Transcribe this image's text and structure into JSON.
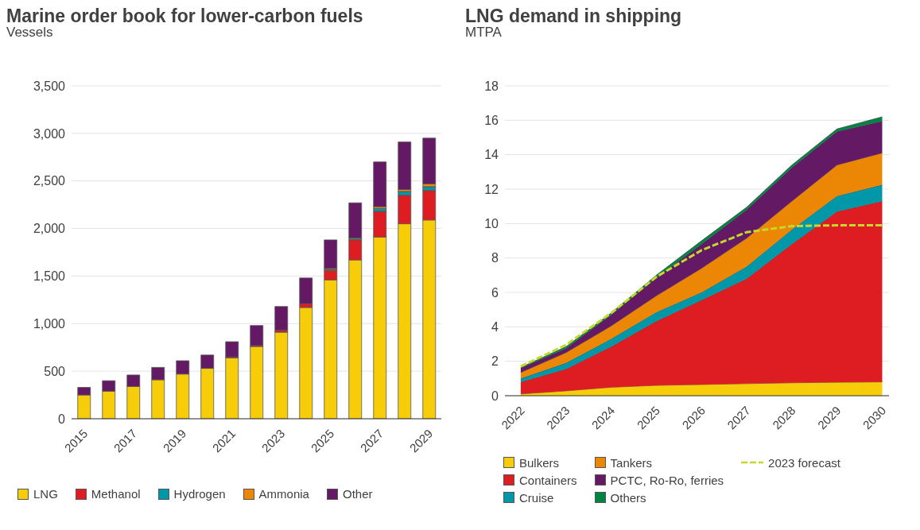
{
  "chart_data": [
    {
      "type": "bar",
      "title": "Marine order book for lower-carbon fuels",
      "subtitle": "Vessels",
      "stacked": true,
      "categories": [
        "2015",
        null,
        "2017",
        null,
        "2019",
        null,
        "2021",
        null,
        "2023",
        null,
        "2025",
        null,
        "2027",
        null,
        "2029"
      ],
      "series": [
        {
          "name": "LNG",
          "color": "#f7cd0a",
          "values": [
            250,
            290,
            340,
            410,
            470,
            530,
            640,
            760,
            910,
            1170,
            1460,
            1670,
            1910,
            2050,
            2090
          ]
        },
        {
          "name": "Methanol",
          "color": "#dd1d21",
          "values": [
            0,
            0,
            0,
            0,
            0,
            0,
            10,
            10,
            20,
            40,
            100,
            210,
            270,
            300,
            310
          ]
        },
        {
          "name": "Hydrogen",
          "color": "#0097a9",
          "values": [
            0,
            0,
            0,
            0,
            0,
            0,
            0,
            0,
            0,
            0,
            10,
            10,
            30,
            40,
            40
          ]
        },
        {
          "name": "Ammonia",
          "color": "#eb8705",
          "values": [
            0,
            0,
            0,
            0,
            0,
            0,
            0,
            0,
            0,
            0,
            10,
            10,
            20,
            20,
            30
          ]
        },
        {
          "name": "Other",
          "color": "#641964",
          "values": [
            80,
            110,
            120,
            130,
            140,
            140,
            160,
            210,
            250,
            270,
            300,
            370,
            470,
            500,
            480
          ]
        }
      ],
      "ylim": [
        0,
        3500
      ],
      "yticks": [
        0,
        500,
        {
          "value": 1000,
          "label": "1,000"
        },
        {
          "value": 1500,
          "label": "1,500"
        },
        {
          "value": 2000,
          "label": "2,000"
        },
        {
          "value": 2500,
          "label": "2,500"
        },
        {
          "value": 3000,
          "label": "3,000"
        },
        {
          "value": 3500,
          "label": "3,500"
        }
      ],
      "grid": "y",
      "legend": "bottom"
    },
    {
      "type": "area",
      "title": "LNG demand in shipping",
      "subtitle": "MTPA",
      "stacked": true,
      "categories": [
        "2022",
        "2023",
        "2024",
        "2025",
        "2026",
        "2027",
        "2028",
        "2029",
        "2030"
      ],
      "series": [
        {
          "name": "Bulkers",
          "color": "#f7cd0a",
          "values": [
            0.1,
            0.28,
            0.49,
            0.6,
            0.65,
            0.7,
            0.75,
            0.78,
            0.8
          ]
        },
        {
          "name": "Containers",
          "color": "#dd1d21",
          "values": [
            0.7,
            1.27,
            2.36,
            3.73,
            4.9,
            6.1,
            8.05,
            9.92,
            10.5
          ]
        },
        {
          "name": "Cruise",
          "color": "#0097a9",
          "values": [
            0.2,
            0.35,
            0.45,
            0.52,
            0.45,
            0.7,
            0.85,
            0.9,
            0.95
          ]
        },
        {
          "name": "Tankers",
          "color": "#eb8705",
          "values": [
            0.35,
            0.6,
            0.75,
            0.95,
            1.4,
            1.65,
            1.65,
            1.8,
            1.85
          ]
        },
        {
          "name": "PCTC, Ro-Ro, ferries",
          "color": "#641964",
          "values": [
            0.25,
            0.25,
            0.65,
            1.05,
            1.4,
            1.65,
            1.95,
            1.95,
            1.85
          ]
        },
        {
          "name": "Others",
          "color": "#008443",
          "values": [
            0.05,
            0.1,
            0.1,
            0.15,
            0.2,
            0.15,
            0.15,
            0.15,
            0.25
          ]
        },
        {
          "name": "2023 forecast",
          "type": "line",
          "line_style": "dashed",
          "color": "#c5d92d",
          "values": [
            1.7,
            2.95,
            4.8,
            6.9,
            8.45,
            9.5,
            9.85,
            9.9,
            9.9
          ]
        }
      ],
      "ylim": [
        0,
        18
      ],
      "yticks": [
        0,
        2,
        4,
        6,
        8,
        10,
        12,
        14,
        16,
        18
      ],
      "grid": "y",
      "legend": "bottom",
      "marker": "none"
    }
  ]
}
